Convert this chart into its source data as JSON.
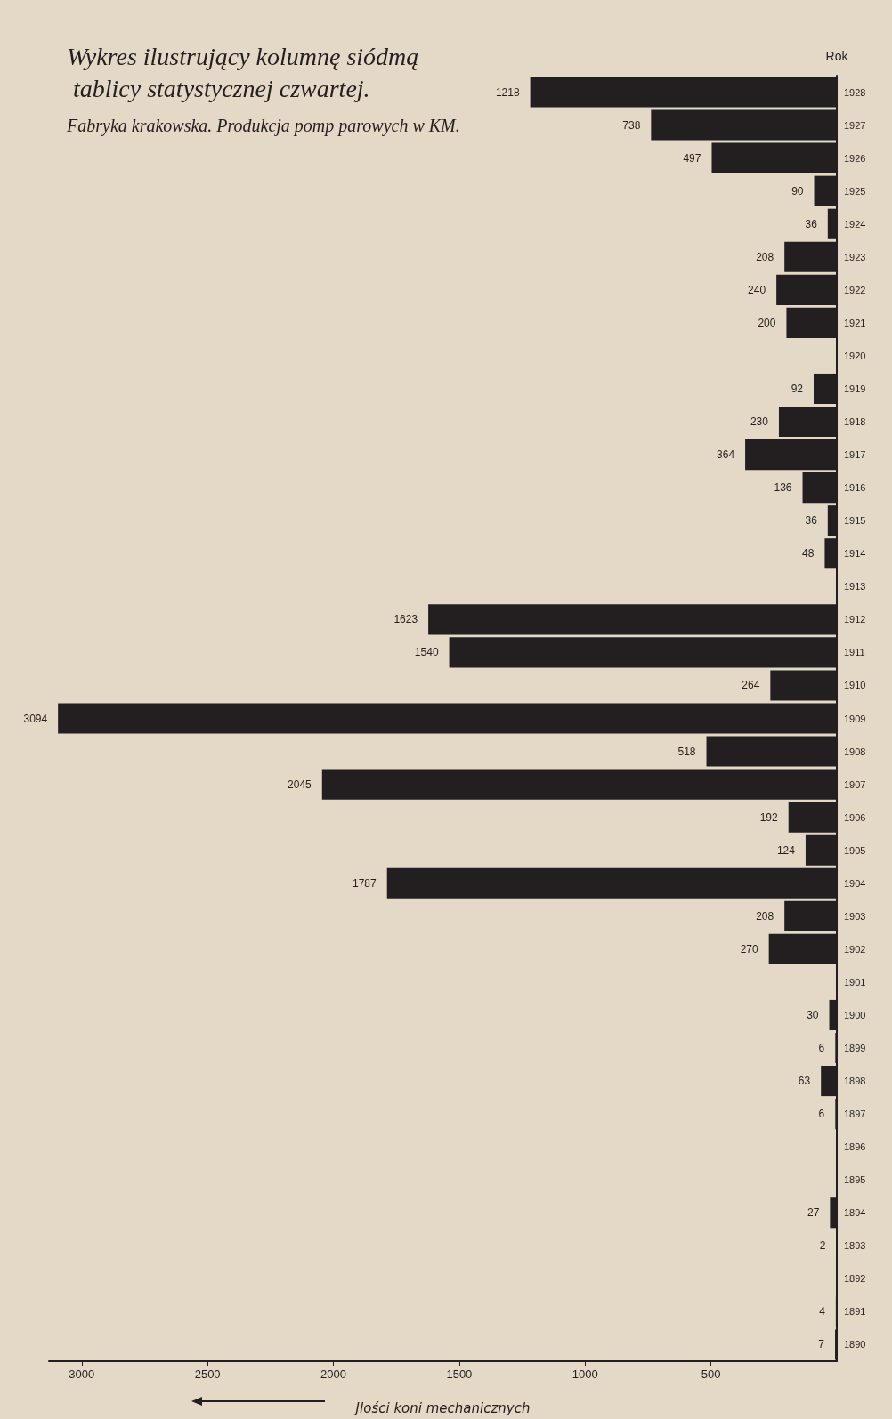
{
  "chart_data": {
    "type": "bar",
    "orientation": "horizontal",
    "title": "Wykres ilustrujący kolumnę siódmą tablicy statystycznej czwartej.",
    "subtitle": "Fabryka krakowska. Produkcja pomp parowych w KM.",
    "xlabel": "Jlości koni mechanicznych",
    "ylabel": "Rok",
    "categories": [
      "1928",
      "1927",
      "1926",
      "1925",
      "1924",
      "1923",
      "1922",
      "1921",
      "1920",
      "1919",
      "1918",
      "1917",
      "1916",
      "1915",
      "1914",
      "1913",
      "1912",
      "1911",
      "1910",
      "1909",
      "1908",
      "1907",
      "1906",
      "1905",
      "1904",
      "1903",
      "1902",
      "1901",
      "1900",
      "1899",
      "1898",
      "1897",
      "1896",
      "1895",
      "1894",
      "1893",
      "1892",
      "1891",
      "1890"
    ],
    "values": [
      1218,
      738,
      497,
      90,
      36,
      208,
      240,
      200,
      null,
      92,
      230,
      364,
      136,
      36,
      48,
      null,
      1623,
      1540,
      264,
      3094,
      518,
      2045,
      192,
      124,
      1787,
      208,
      270,
      null,
      30,
      6,
      63,
      6,
      null,
      null,
      27,
      2,
      null,
      4,
      7
    ],
    "color": "#231f20",
    "data_labels": true,
    "xlim": [
      3130,
      0
    ],
    "xticks": [
      500,
      1000,
      1500,
      2000,
      2500,
      3000
    ],
    "grid": false
  }
}
